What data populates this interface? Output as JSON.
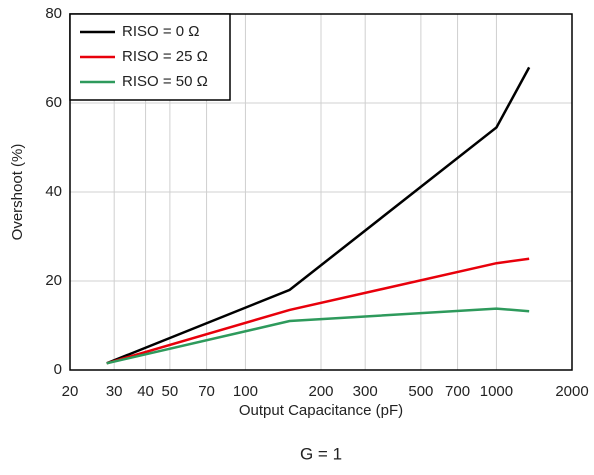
{
  "chart_data": {
    "type": "line",
    "caption": "G = 1",
    "x_label": "Output Capacitance (pF)",
    "y_label": "Overshoot (%)",
    "x_log": true,
    "xlim": [
      20,
      2000
    ],
    "xticks": [
      20,
      30,
      40,
      50,
      70,
      100,
      200,
      300,
      500,
      700,
      1000,
      2000
    ],
    "ylim": [
      0,
      80
    ],
    "yticks": [
      0,
      20,
      40,
      60,
      80
    ],
    "grid": true,
    "legend": "upper-left",
    "x": [
      28,
      150,
      1000,
      1350
    ],
    "series": [
      {
        "name": "RISO = 0 Ω",
        "color": "#000000",
        "values": [
          1.5,
          18,
          54.5,
          68
        ]
      },
      {
        "name": "RISO = 25 Ω",
        "color": "#e8000b",
        "values": [
          1.5,
          13.5,
          24,
          25
        ]
      },
      {
        "name": "RISO = 50 Ω",
        "color": "#2e9a5c",
        "values": [
          1.5,
          11,
          13.8,
          13.2
        ]
      }
    ]
  }
}
